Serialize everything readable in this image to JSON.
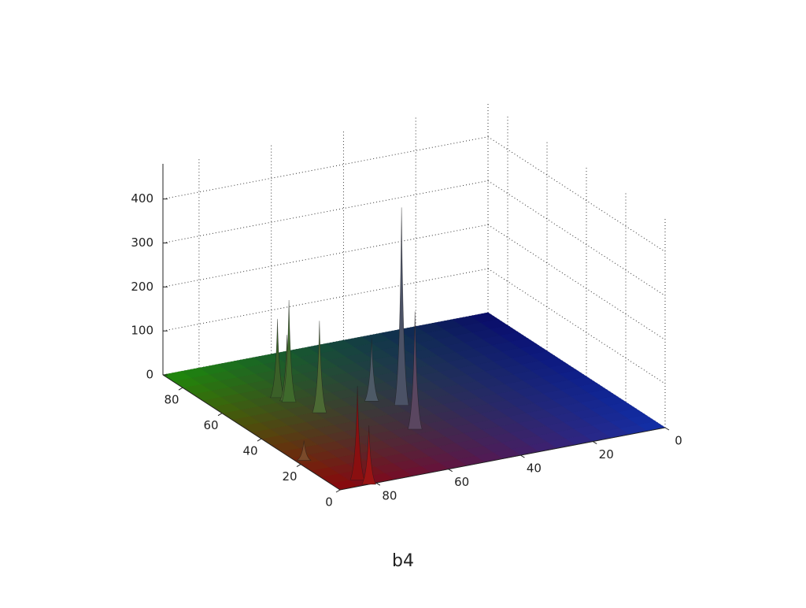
{
  "chart_data": {
    "type": "surface3d",
    "caption": "b4",
    "xlim": [
      0,
      90
    ],
    "xticks": [
      0,
      20,
      40,
      60,
      80
    ],
    "ylim": [
      0,
      90
    ],
    "yticks": [
      0,
      20,
      40,
      60,
      80
    ],
    "zlim": [
      0,
      480
    ],
    "zticks": [
      0,
      100,
      200,
      300,
      400
    ],
    "grid": true,
    "peaks": [
      {
        "x": 44,
        "y": 49,
        "z": 450,
        "color": "#4b5266"
      },
      {
        "x": 28,
        "y": 54,
        "z": 268,
        "color": "#5a4660"
      },
      {
        "x": 50,
        "y": 54,
        "z": 143,
        "color": "#4d5a66"
      },
      {
        "x": 59,
        "y": 72,
        "z": 232,
        "color": "#3f6a2c"
      },
      {
        "x": 63,
        "y": 73,
        "z": 179,
        "color": "#3b6028"
      },
      {
        "x": 60,
        "y": 72,
        "z": 150,
        "color": "#44652e"
      },
      {
        "x": 49,
        "y": 69,
        "z": 209,
        "color": "#4c6a34"
      },
      {
        "x": 4,
        "y": 83,
        "z": 214,
        "color": "#8a0f10"
      },
      {
        "x": 0,
        "y": 82,
        "z": 134,
        "color": "#9a1414"
      },
      {
        "x": 22,
        "y": 88,
        "z": 45,
        "color": "#7a4a2a"
      }
    ]
  }
}
